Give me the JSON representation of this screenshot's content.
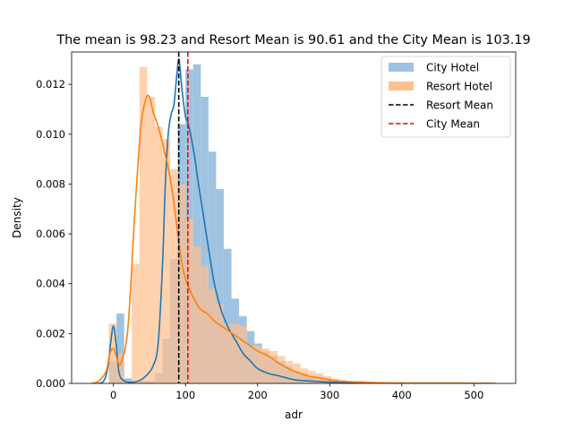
{
  "chart_data": {
    "type": "histogram-kde",
    "title": "The mean is 98.23 and Resort Mean is 90.61 and the City Mean is  103.19",
    "xlabel": "adr",
    "ylabel": "Density",
    "xlim": [
      -58,
      558
    ],
    "ylim": [
      0,
      0.0133
    ],
    "x_ticks": [
      0,
      100,
      200,
      300,
      400,
      500
    ],
    "y_ticks": [
      0.0,
      0.002,
      0.004,
      0.006,
      0.008,
      0.01,
      0.012
    ],
    "y_tick_labels": [
      "0.000",
      "0.002",
      "0.004",
      "0.006",
      "0.008",
      "0.010",
      "0.012"
    ],
    "bin_width": 10.63,
    "bin_start": -6.38,
    "series": [
      {
        "name": "City Hotel",
        "color": "#1f77b4",
        "hist_color": "#9fc3e0",
        "hist": [
          0.0009,
          0.0028,
          0.0002,
          0.0,
          0.0001,
          0.0001,
          0.0004,
          0.0018,
          0.005,
          0.0104,
          0.0126,
          0.0128,
          0.0115,
          0.0093,
          0.0078,
          0.0054,
          0.0034,
          0.0027,
          0.0021,
          0.0016,
          0.0013,
          0.0011,
          0.0009,
          0.0007,
          0.0005,
          0.0004,
          0.0003,
          0.00025,
          0.0002,
          0.00015,
          0.0001,
          0.0001,
          8e-05,
          5e-05,
          4e-05,
          3e-05,
          2e-05,
          2e-05,
          1e-05,
          1e-05,
          1e-05,
          0.0,
          0.0,
          0.0,
          1e-05,
          0.0,
          0.0,
          0.0,
          0.0,
          1e-05
        ],
        "kde_x": [
          -30,
          -15,
          -8,
          -4,
          0,
          4,
          8,
          15,
          25,
          35,
          45,
          55,
          62,
          68,
          72,
          76,
          80,
          84,
          88,
          91,
          95,
          100,
          103,
          107,
          112,
          118,
          125,
          132,
          140,
          150,
          160,
          170,
          180,
          190,
          200,
          215,
          230,
          250,
          270,
          300,
          340,
          380,
          430,
          480,
          530
        ],
        "kde_y": [
          0.0,
          5e-05,
          0.0006,
          0.0016,
          0.0023,
          0.0015,
          0.0004,
          0.0001,
          5e-05,
          0.0001,
          0.0003,
          0.0007,
          0.0016,
          0.0047,
          0.008,
          0.01,
          0.0108,
          0.0112,
          0.0124,
          0.013,
          0.0118,
          0.0107,
          0.0105,
          0.01,
          0.0092,
          0.008,
          0.0067,
          0.0054,
          0.004,
          0.0029,
          0.0022,
          0.0017,
          0.0012,
          0.0009,
          0.0006,
          0.0004,
          0.0003,
          0.00015,
          0.0001,
          5e-05,
          2e-05,
          1e-05,
          1e-05,
          1e-05,
          0.0
        ]
      },
      {
        "name": "Resort Hotel",
        "color": "#ff7f0e",
        "hist_color": "#ffc08f",
        "hist": [
          0.0024,
          0.0012,
          0.0001,
          0.0048,
          0.0127,
          0.0115,
          0.0103,
          0.0098,
          0.0086,
          0.008,
          0.0066,
          0.0055,
          0.0047,
          0.0038,
          0.0032,
          0.0024,
          0.0024,
          0.0023,
          0.0015,
          0.0015,
          0.0014,
          0.0013,
          0.0011,
          0.0009,
          0.0008,
          0.0006,
          0.0005,
          0.0004,
          0.0003,
          0.0002,
          0.00015,
          0.0001,
          0.0001,
          8e-05,
          5e-05,
          4e-05,
          3e-05,
          2e-05,
          2e-05,
          1e-05,
          1e-05,
          1e-05,
          0.0,
          0.0,
          0.0,
          0.0,
          0.0,
          0.0,
          0.0,
          1e-05
        ],
        "kde_x": [
          -30,
          -20,
          -10,
          -5,
          0,
          5,
          10,
          20,
          30,
          38,
          45,
          50,
          55,
          60,
          65,
          70,
          75,
          80,
          85,
          90,
          95,
          100,
          110,
          120,
          130,
          140,
          150,
          160,
          170,
          180,
          190,
          200,
          215,
          230,
          250,
          270,
          290,
          310,
          340,
          380,
          430,
          480,
          530
        ],
        "kde_y": [
          0.0,
          0.0001,
          0.0005,
          0.0012,
          0.0014,
          0.001,
          0.0008,
          0.0022,
          0.007,
          0.0103,
          0.0114,
          0.0115,
          0.0109,
          0.0105,
          0.01,
          0.0094,
          0.0088,
          0.008,
          0.007,
          0.0058,
          0.0048,
          0.0042,
          0.0035,
          0.003,
          0.0028,
          0.0025,
          0.0023,
          0.0021,
          0.0019,
          0.0017,
          0.0015,
          0.0013,
          0.0011,
          0.0008,
          0.0005,
          0.0003,
          0.0002,
          0.0001,
          5e-05,
          2e-05,
          1e-05,
          1e-05,
          0.0
        ]
      }
    ],
    "reference_lines": [
      {
        "name": "Resort Mean",
        "x": 90.61,
        "color": "#000000",
        "style": "dashed"
      },
      {
        "name": "City Mean",
        "x": 103.19,
        "color": "#ff0000",
        "style": "dashed"
      }
    ],
    "legend": {
      "placement": "top-right",
      "entries": [
        {
          "label": "City Hotel",
          "kind": "patch",
          "color": "#9fc3e0"
        },
        {
          "label": "Resort Hotel",
          "kind": "patch",
          "color": "#ffc08f"
        },
        {
          "label": "Resort Mean",
          "kind": "dashed",
          "color": "#000000"
        },
        {
          "label": "City Mean",
          "kind": "dashed",
          "color": "#ff0000"
        }
      ]
    },
    "grid": false
  }
}
